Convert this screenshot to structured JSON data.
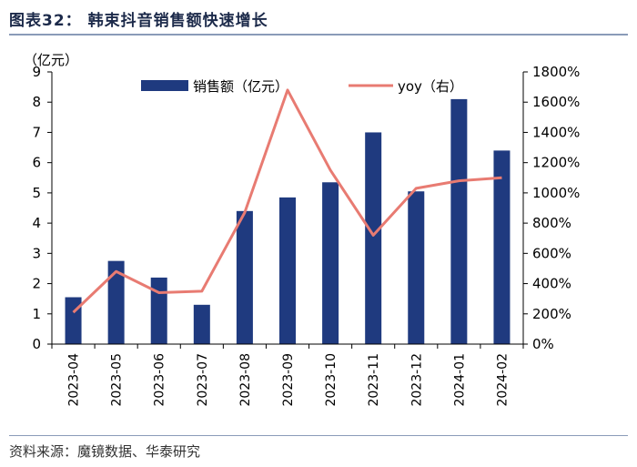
{
  "figure": {
    "title": "图表32：  韩束抖音销售额快速增长",
    "source": "资料来源：魔镜数据、华泰研究"
  },
  "chart_data": {
    "type": "bar",
    "categories": [
      "2023-04",
      "2023-05",
      "2023-06",
      "2023-07",
      "2023-08",
      "2023-09",
      "2023-10",
      "2023-11",
      "2023-12",
      "2024-01",
      "2024-02"
    ],
    "series": [
      {
        "name": "销售额（亿元）",
        "type": "bar",
        "axis": "left",
        "color": "#1f3a7f",
        "values": [
          1.55,
          2.75,
          2.2,
          1.3,
          4.4,
          4.85,
          5.35,
          7.0,
          5.05,
          8.1,
          6.4
        ]
      },
      {
        "name": "yoy（右）",
        "type": "line",
        "axis": "right",
        "color": "#e87b72",
        "values": [
          210,
          480,
          340,
          350,
          870,
          1680,
          1150,
          720,
          1030,
          1080,
          1100
        ]
      }
    ],
    "yleft": {
      "label": "（亿元）",
      "min": 0,
      "max": 9,
      "ticks": [
        "0",
        "1",
        "2",
        "3",
        "4",
        "5",
        "6",
        "7",
        "8",
        "9"
      ]
    },
    "yright": {
      "min": 0,
      "max": 1800,
      "ticks": [
        "0%",
        "200%",
        "400%",
        "600%",
        "800%",
        "1000%",
        "1200%",
        "1400%",
        "1600%",
        "1800%"
      ]
    },
    "legend_position": "top"
  }
}
